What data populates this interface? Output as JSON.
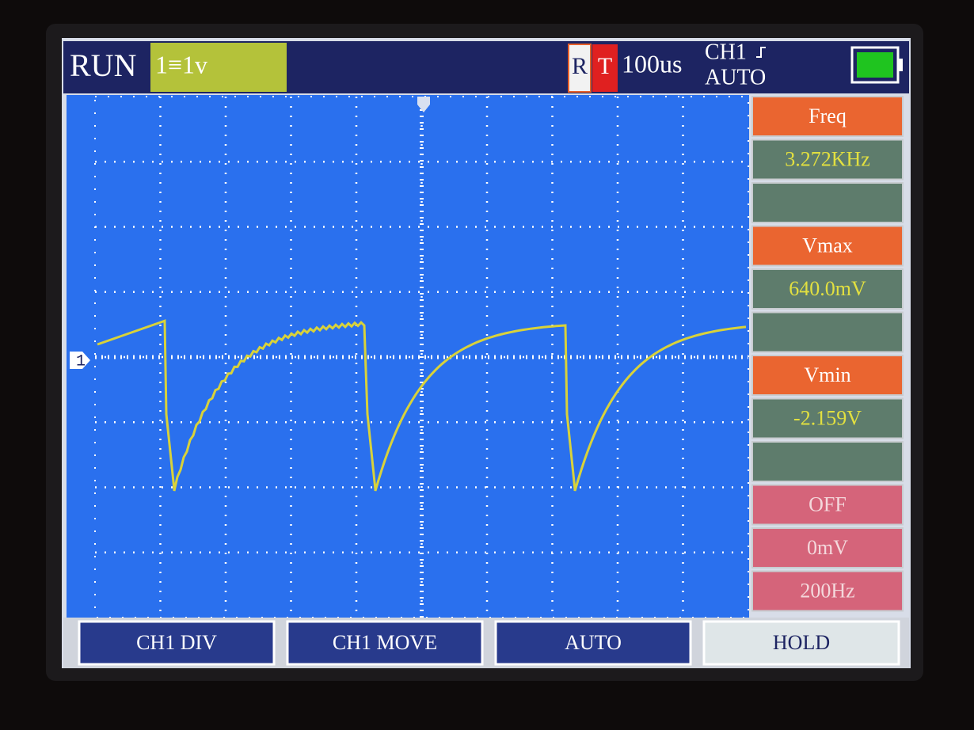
{
  "status": "RUN",
  "channel_scale": "1≡1v",
  "trigger": {
    "r": "R",
    "t": "T",
    "timebase": "100us",
    "source": "CH1",
    "mode": "AUTO"
  },
  "channel_marker": "1",
  "measurements": [
    {
      "label": "Freq",
      "value": "3.272KHz"
    },
    {
      "label": "Vmax",
      "value": "640.0mV"
    },
    {
      "label": "Vmin",
      "value": "-2.159V"
    }
  ],
  "settings": [
    "OFF",
    "0mV",
    "200Hz"
  ],
  "buttons": [
    "CH1 DIV",
    "CH1 MOVE",
    "AUTO",
    "HOLD"
  ]
}
